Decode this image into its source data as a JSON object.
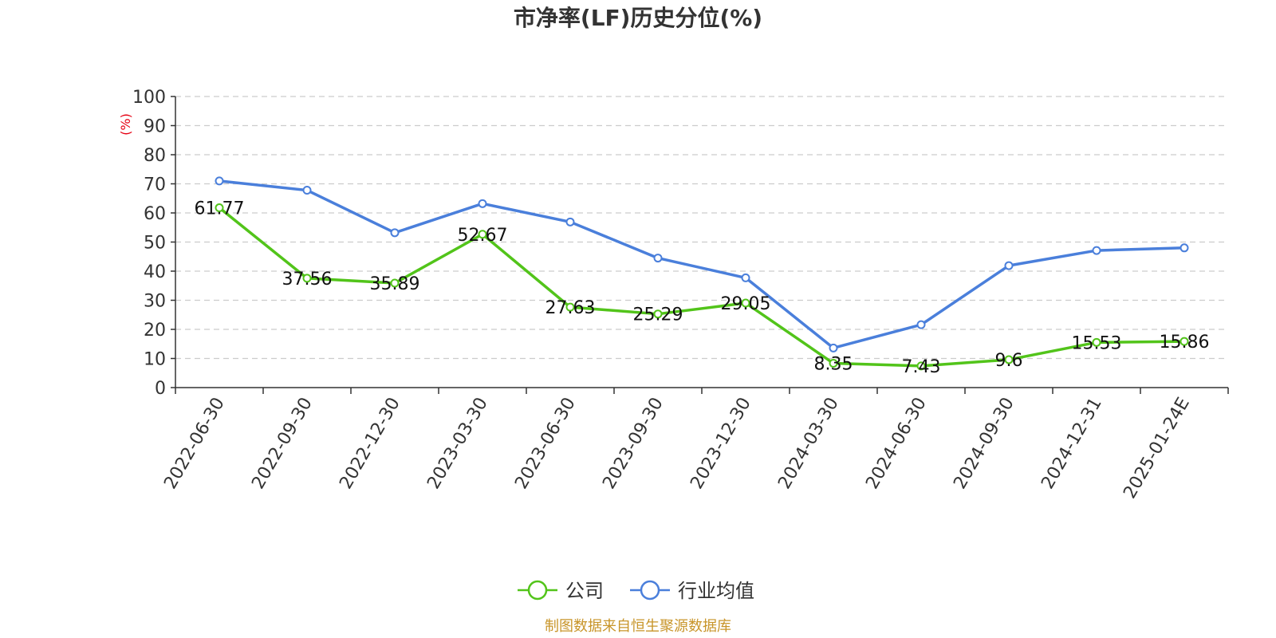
{
  "chart_data": {
    "type": "line",
    "title": "市净率(LF)历史分位(%)",
    "ylabel": "(%)",
    "xlabel": "",
    "ylim": [
      0,
      100
    ],
    "yticks": [
      0,
      10,
      20,
      30,
      40,
      50,
      60,
      70,
      80,
      90,
      100
    ],
    "categories": [
      "2022-06-30",
      "2022-09-30",
      "2022-12-30",
      "2023-03-30",
      "2023-06-30",
      "2023-09-30",
      "2023-12-30",
      "2024-03-30",
      "2024-06-30",
      "2024-09-30",
      "2024-12-31",
      "2025-01-24E"
    ],
    "grid": true,
    "legend_position": "bottom",
    "series": [
      {
        "name": "公司",
        "color": "#52c41a",
        "show_labels": true,
        "values": [
          61.77,
          37.56,
          35.89,
          52.67,
          27.63,
          25.29,
          29.05,
          8.35,
          7.43,
          9.6,
          15.53,
          15.86
        ]
      },
      {
        "name": "行业均值",
        "color": "#4a7fdb",
        "show_labels": false,
        "values": [
          71.0,
          67.8,
          53.2,
          63.2,
          56.9,
          44.5,
          37.7,
          13.6,
          21.6,
          41.9,
          47.1,
          48.0
        ]
      }
    ],
    "source": "制图数据来自恒生聚源数据库",
    "source_color": "#c8952a",
    "ylabel_color": "#e60012"
  }
}
